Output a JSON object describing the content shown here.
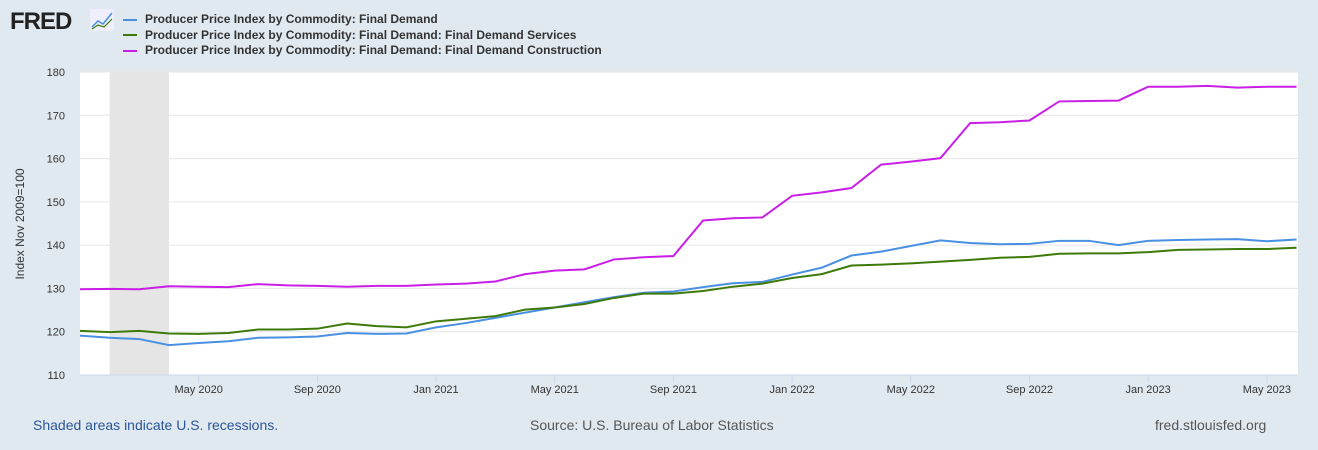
{
  "logo": {
    "text": "FRED"
  },
  "footer": {
    "recession_note": "Shaded areas indicate U.S. recessions.",
    "source": "Source: U.S. Bureau of Labor Statistics",
    "site": "fred.stlouisfed.org"
  },
  "chart_data": {
    "type": "line",
    "title": "",
    "xlabel": "",
    "ylabel": "Index Nov 2009=100",
    "ylim": [
      110,
      180
    ],
    "yticks": [
      110,
      120,
      130,
      140,
      150,
      160,
      170,
      180
    ],
    "x_start": "2020-01",
    "x_ticks": [
      {
        "label": "May 2020",
        "index": 4
      },
      {
        "label": "Sep 2020",
        "index": 8
      },
      {
        "label": "Jan 2021",
        "index": 12
      },
      {
        "label": "May 2021",
        "index": 16
      },
      {
        "label": "Sep 2021",
        "index": 20
      },
      {
        "label": "Jan 2022",
        "index": 24
      },
      {
        "label": "May 2022",
        "index": 28
      },
      {
        "label": "Sep 2022",
        "index": 32
      },
      {
        "label": "Jan 2023",
        "index": 36
      },
      {
        "label": "May 2023",
        "index": 40
      }
    ],
    "recession": {
      "start_index": 1,
      "end_index": 3
    },
    "grid": true,
    "legend_position": "top-left",
    "series": [
      {
        "name": "Producer Price Index by Commodity: Final Demand",
        "color": "#4a90e2",
        "values": [
          119.1,
          118.6,
          118.3,
          116.9,
          117.4,
          117.8,
          118.6,
          118.7,
          118.9,
          119.7,
          119.5,
          119.6,
          121.0,
          122.0,
          123.2,
          124.4,
          125.6,
          126.8,
          128.0,
          129.0,
          129.3,
          130.3,
          131.2,
          131.5,
          133.2,
          134.8,
          137.6,
          138.5,
          139.8,
          141.1,
          140.5,
          140.2,
          140.3,
          141.0,
          141.0,
          140.0,
          141.0,
          141.2,
          141.3,
          141.4,
          140.9,
          141.3
        ]
      },
      {
        "name": "Producer Price Index by Commodity: Final Demand: Final Demand Services",
        "color": "#3e7a08",
        "values": [
          120.2,
          119.9,
          120.2,
          119.6,
          119.5,
          119.7,
          120.5,
          120.5,
          120.7,
          121.9,
          121.3,
          121.0,
          122.4,
          123.0,
          123.6,
          125.1,
          125.6,
          126.4,
          127.8,
          128.8,
          128.8,
          129.4,
          130.4,
          131.1,
          132.4,
          133.3,
          135.3,
          135.5,
          135.8,
          136.2,
          136.6,
          137.1,
          137.3,
          138.0,
          138.1,
          138.1,
          138.4,
          138.9,
          139.0,
          139.1,
          139.1,
          139.4
        ]
      },
      {
        "name": "Producer Price Index by Commodity: Final Demand: Final Demand Construction",
        "color": "#c81ee6",
        "values": [
          129.8,
          129.9,
          129.8,
          130.5,
          130.4,
          130.3,
          131.0,
          130.7,
          130.6,
          130.4,
          130.6,
          130.6,
          130.9,
          131.1,
          131.6,
          133.3,
          134.1,
          134.4,
          136.7,
          137.2,
          137.5,
          145.7,
          146.2,
          146.4,
          151.4,
          152.2,
          153.2,
          158.6,
          159.3,
          160.1,
          168.2,
          168.4,
          168.8,
          173.2,
          173.3,
          173.4,
          176.6,
          176.6,
          176.8,
          176.4,
          176.6,
          176.6
        ]
      }
    ]
  }
}
